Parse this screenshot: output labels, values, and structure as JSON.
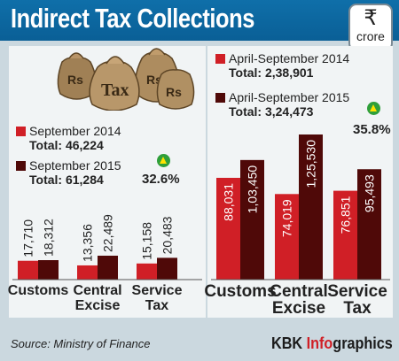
{
  "title": "Indirect Tax Collections",
  "unit": {
    "icon": "rupee-icon",
    "symbol": "₹",
    "label": "crore"
  },
  "colors": {
    "header": "#0f6fa9",
    "series_2014": "#d01f26",
    "series_2015": "#4f0908",
    "growth_icon": "#2f9f3a"
  },
  "left": {
    "legend": [
      {
        "label": "September 2014",
        "total": "Total: 46,224"
      },
      {
        "label": "September 2015",
        "total": "Total: 61,284"
      }
    ],
    "growth": "32.6%"
  },
  "right": {
    "legend": [
      {
        "label": "April-September 2014",
        "total": "Total: 2,38,901"
      },
      {
        "label": "April-September 2015",
        "total": "Total: 3,24,473"
      }
    ],
    "growth": "35.8%"
  },
  "chart_data": [
    {
      "type": "bar",
      "categories": [
        "Customs",
        "Central Excise",
        "Service Tax"
      ],
      "series": [
        {
          "name": "September 2014",
          "values": [
            17710,
            13356,
            15158
          ],
          "labels": [
            "17,710",
            "13,356",
            "15,158"
          ]
        },
        {
          "name": "September 2015",
          "values": [
            18312,
            22489,
            20483
          ],
          "labels": [
            "18,312",
            "22,489",
            "20,483"
          ]
        }
      ]
    },
    {
      "type": "bar",
      "categories": [
        "Customs",
        "Central Excise",
        "Service Tax"
      ],
      "series": [
        {
          "name": "April-September 2014",
          "values": [
            88031,
            74019,
            76851
          ],
          "labels": [
            "88,031",
            "74,019",
            "76,851"
          ]
        },
        {
          "name": "April-September 2015",
          "values": [
            103450,
            125530,
            95493
          ],
          "labels": [
            "1,03,450",
            "1,25,530",
            "95,493"
          ]
        }
      ]
    }
  ],
  "footer": {
    "source": "Source: Ministry of Finance",
    "brand_a": "KBK ",
    "brand_b": "Info",
    "brand_c": "graphics"
  },
  "bags": [
    "Rs",
    "Tax",
    "Rs",
    "Rs"
  ]
}
